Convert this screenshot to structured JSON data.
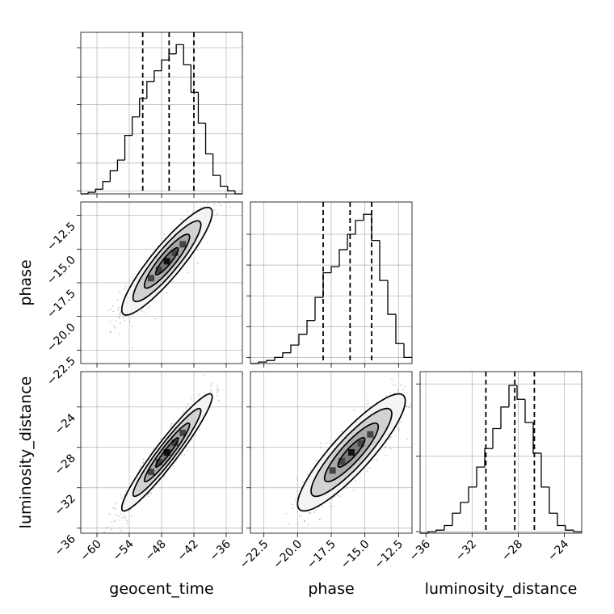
{
  "chart_data": {
    "type": "corner",
    "parameters": [
      {
        "name": "geocent_time",
        "range": [
          -63,
          -33
        ],
        "ticks": [
          -60,
          -54,
          -48,
          -42,
          -36
        ],
        "tick_labels": [
          "−60",
          "−54",
          "−48",
          "−42",
          "−36"
        ],
        "quantiles": [
          -51.5,
          -46.6,
          -42.0
        ],
        "hist": [
          0,
          0.01,
          0.03,
          0.08,
          0.15,
          0.22,
          0.38,
          0.5,
          0.62,
          0.73,
          0.8,
          0.87,
          0.91,
          0.97,
          0.84,
          0.66,
          0.46,
          0.26,
          0.12,
          0.05,
          0.02,
          0.0
        ],
        "hist_ticks": [
          0.02,
          0.2,
          0.39,
          0.58,
          0.76,
          0.95
        ]
      },
      {
        "name": "phase",
        "range": [
          -23.5,
          -11.5
        ],
        "ticks": [
          -22.5,
          -20.0,
          -17.5,
          -15.0,
          -12.5
        ],
        "tick_labels": [
          "−22.5",
          "−20.0",
          "−17.5",
          "−15.0",
          "−12.5"
        ],
        "quantiles": [
          -18.1,
          -16.1,
          -14.5
        ],
        "hist": [
          0.0,
          0.01,
          0.02,
          0.04,
          0.07,
          0.12,
          0.19,
          0.28,
          0.43,
          0.59,
          0.63,
          0.74,
          0.84,
          0.93,
          0.97,
          0.8,
          0.54,
          0.32,
          0.13,
          0.04
        ],
        "hist_ticks": [
          0.04,
          0.24,
          0.44,
          0.64,
          0.84
        ]
      },
      {
        "name": "luminosity_distance",
        "range": [
          -36.5,
          -22.5
        ],
        "ticks": [
          -36,
          -32,
          -28,
          -24
        ],
        "tick_labels": [
          "−36",
          "−32",
          "−28",
          "−24"
        ],
        "quantiles": [
          -30.8,
          -28.3,
          -26.6
        ],
        "hist": [
          0.0,
          0.01,
          0.02,
          0.05,
          0.13,
          0.2,
          0.3,
          0.43,
          0.55,
          0.68,
          0.82,
          0.96,
          0.87,
          0.72,
          0.52,
          0.3,
          0.13,
          0.05,
          0.02,
          0.01
        ],
        "hist_ticks": [
          0.01,
          0.5,
          0.97
        ]
      }
    ],
    "pairs": [
      {
        "x": "geocent_time",
        "y": "phase",
        "ylim": [
          -23.5,
          -11.5
        ],
        "mean": [
          -47.0,
          -15.9
        ],
        "sd": [
          4.2,
          2.0
        ],
        "rho": 0.9,
        "ytick_labels": [
          "−12.5",
          "−15.0",
          "−17.5",
          "−20.0",
          "−22.5"
        ]
      },
      {
        "x": "geocent_time",
        "y": "luminosity_distance",
        "ylim": [
          -36.5,
          -20.5
        ],
        "mean": [
          -47.0,
          -28.5
        ],
        "sd": [
          4.2,
          2.9
        ],
        "rho": 0.95,
        "ytick_labels": [
          "−24",
          "−28",
          "−32",
          "−36"
        ]
      },
      {
        "x": "phase",
        "y": "luminosity_distance",
        "ylim": [
          -36.5,
          -20.5
        ],
        "mean": [
          -16.0,
          -28.5
        ],
        "sd": [
          2.0,
          2.9
        ],
        "rho": 0.88
      }
    ],
    "contour_levels": [
      0.5,
      1.0,
      1.5,
      2.0
    ],
    "colors": {
      "line": "#000000",
      "grid": "#b0b0b0",
      "scatter": "#9a9a9a"
    }
  }
}
